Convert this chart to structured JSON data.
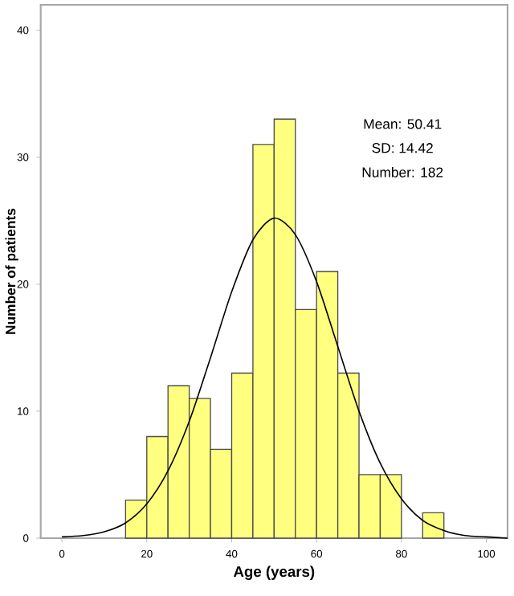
{
  "chart_data": {
    "type": "histogram",
    "xlabel": "Age (years)",
    "ylabel": "Number of patients",
    "bins": [
      15,
      20,
      25,
      30,
      35,
      40,
      45,
      50,
      55,
      60,
      65,
      70,
      75,
      80,
      85,
      90
    ],
    "values": [
      3,
      8,
      12,
      11,
      7,
      13,
      31,
      33,
      18,
      21,
      13,
      5,
      5,
      0,
      2
    ],
    "color": "#ffff80",
    "series": [
      {
        "type": "line",
        "color": "#000000",
        "x": [
          0,
          5,
          10,
          15,
          20,
          25,
          30,
          35,
          40,
          45,
          50,
          55,
          60,
          65,
          70,
          75,
          80,
          85,
          90,
          95,
          100,
          105
        ],
        "values": [
          0.1,
          0.2,
          0.5,
          1.2,
          2.7,
          5.3,
          9.2,
          14.2,
          19.4,
          23.5,
          25.2,
          23.9,
          20.2,
          15.1,
          10.0,
          5.9,
          3.1,
          1.4,
          0.6,
          0.2,
          0.1,
          0
        ]
      }
    ],
    "annotations": [
      "Mean: 50.41",
      "SD: 14.42",
      "Number: 182"
    ],
    "xlim": [
      -5,
      105
    ],
    "ylim": [
      0,
      42
    ],
    "xticks": [
      0,
      20,
      40,
      60,
      80,
      100
    ],
    "yticks": [
      0,
      10,
      20,
      30,
      40
    ],
    "grid": false
  }
}
